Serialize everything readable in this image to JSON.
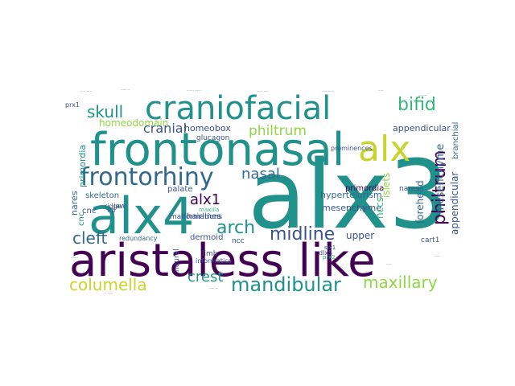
{
  "wordcloud": {
    "palette": {
      "purple": "#440154",
      "indigo": "#3b528b",
      "blue": "#31688e",
      "teal": "#21918c",
      "green": "#35b779",
      "lime": "#90d743",
      "yellow": "#c8d42b",
      "violet": "#472d7b"
    },
    "words": [
      {
        "text": "alx3",
        "color": "teal"
      },
      {
        "text": "aristaless like",
        "color": "purple"
      },
      {
        "text": "frontonasal",
        "color": "teal"
      },
      {
        "text": "alx4",
        "color": "teal"
      },
      {
        "text": "craniofacial",
        "color": "teal"
      },
      {
        "text": "frontorhiny",
        "color": "blue"
      },
      {
        "text": "alx",
        "color": "yellow"
      },
      {
        "text": "mandibular",
        "color": "teal"
      },
      {
        "text": "columella",
        "color": "yellow"
      },
      {
        "text": "maxillary",
        "color": "lime"
      },
      {
        "text": "midline",
        "color": "indigo"
      },
      {
        "text": "arch",
        "color": "teal"
      },
      {
        "text": "cleft",
        "color": "blue"
      },
      {
        "text": "skull",
        "color": "teal"
      },
      {
        "text": "bifid",
        "color": "green"
      },
      {
        "text": "nasal",
        "color": "blue"
      },
      {
        "text": "alx1",
        "color": "purple"
      },
      {
        "text": "philtrum",
        "color": "purple"
      },
      {
        "text": "cranial",
        "color": "lime"
      },
      {
        "text": "crest",
        "color": "indigo"
      },
      {
        "text": "upper",
        "color": "teal"
      },
      {
        "text": "hypertelorism",
        "color": "indigo"
      },
      {
        "text": "mesenchyme",
        "color": "blue"
      },
      {
        "text": "appendicular",
        "color": "indigo"
      },
      {
        "text": "homeodomain",
        "color": "blue"
      },
      {
        "text": "homeobox",
        "color": "indigo"
      },
      {
        "text": "skeleton",
        "color": "indigo"
      },
      {
        "text": "palate",
        "color": "lime"
      },
      {
        "text": "hairlines",
        "color": "indigo"
      },
      {
        "text": "malformations",
        "color": "blue"
      },
      {
        "text": "dermoid",
        "color": "indigo"
      },
      {
        "text": "redundancy",
        "color": "indigo"
      },
      {
        "text": "cart1",
        "color": "indigo"
      },
      {
        "text": "facial",
        "color": "indigo"
      },
      {
        "text": "blueprint",
        "color": "blue"
      },
      {
        "text": "mandible",
        "color": "indigo"
      },
      {
        "text": "forehead",
        "color": "blue"
      },
      {
        "text": "branchial",
        "color": "blue"
      },
      {
        "text": "islets",
        "color": "lime"
      },
      {
        "text": "nccs",
        "color": "green"
      },
      {
        "text": "fgf8",
        "color": "purple"
      },
      {
        "text": "medial",
        "color": "indigo"
      },
      {
        "text": "primordia",
        "color": "teal"
      },
      {
        "text": "nares",
        "color": "blue"
      },
      {
        "text": "pharyngeal",
        "color": "indigo"
      },
      {
        "text": "jaw",
        "color": "indigo"
      },
      {
        "text": "cnc",
        "color": "teal"
      },
      {
        "text": "lip",
        "color": "indigo"
      },
      {
        "text": "ncc",
        "color": "indigo"
      },
      {
        "text": "limb",
        "color": "indigo"
      },
      {
        "text": "neural",
        "color": "indigo"
      },
      {
        "text": "informatics",
        "color": "indigo"
      },
      {
        "text": "glucagon",
        "color": "indigo"
      },
      {
        "text": "prominences",
        "color": "indigo"
      },
      {
        "text": "dlx5",
        "color": "indigo"
      },
      {
        "text": "six1",
        "color": "indigo"
      },
      {
        "text": "prx1",
        "color": "indigo"
      },
      {
        "text": "prx2",
        "color": "green"
      },
      {
        "text": "maxilla",
        "color": "green"
      },
      {
        "text": "ridge",
        "color": "indigo"
      }
    ]
  }
}
